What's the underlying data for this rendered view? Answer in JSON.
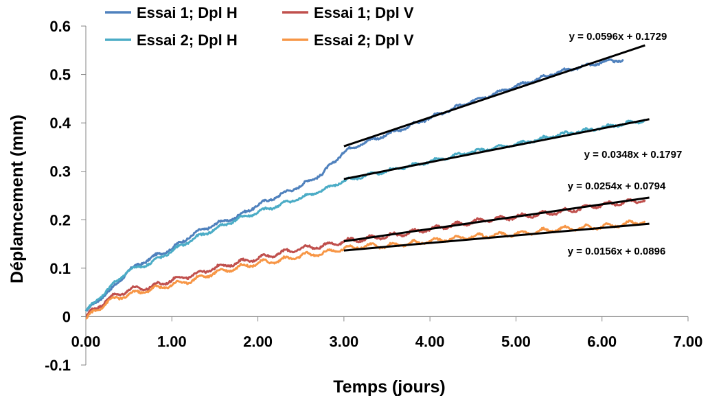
{
  "chart_data": {
    "type": "line",
    "title": "",
    "xlabel": "Temps (jours)",
    "ylabel": "Déplamcement (mm)",
    "xlim": [
      0,
      7
    ],
    "ylim": [
      -0.1,
      0.6
    ],
    "x_tick_labels": [
      "0.00",
      "1.00",
      "2.00",
      "3.00",
      "4.00",
      "5.00",
      "6.00",
      "7.00"
    ],
    "y_tick_labels": [
      "-0.1",
      "0",
      "0.1",
      "0.2",
      "0.3",
      "0.4",
      "0.5",
      "0.6"
    ],
    "grid": false,
    "legend_position": "top-left",
    "series": [
      {
        "name": "Essai 1; Dpl H",
        "color": "#4F81BD",
        "points": [
          [
            0.0,
            0.01
          ],
          [
            0.25,
            0.05
          ],
          [
            0.3,
            0.055
          ],
          [
            0.5,
            0.095
          ],
          [
            0.75,
            0.12
          ],
          [
            1.0,
            0.14
          ],
          [
            1.25,
            0.17
          ],
          [
            1.5,
            0.19
          ],
          [
            1.75,
            0.205
          ],
          [
            2.0,
            0.23
          ],
          [
            2.25,
            0.25
          ],
          [
            2.5,
            0.27
          ],
          [
            2.75,
            0.295
          ],
          [
            3.0,
            0.34
          ],
          [
            3.25,
            0.36
          ],
          [
            3.5,
            0.375
          ],
          [
            4.0,
            0.41
          ],
          [
            4.5,
            0.445
          ],
          [
            5.0,
            0.475
          ],
          [
            5.5,
            0.505
          ],
          [
            6.0,
            0.525
          ],
          [
            6.25,
            0.53
          ]
        ]
      },
      {
        "name": "Essai 1; Dpl V",
        "color": "#C0504D",
        "points": [
          [
            0.0,
            0.0
          ],
          [
            0.25,
            0.035
          ],
          [
            0.5,
            0.055
          ],
          [
            0.75,
            0.06
          ],
          [
            1.0,
            0.075
          ],
          [
            1.25,
            0.085
          ],
          [
            1.5,
            0.1
          ],
          [
            1.75,
            0.11
          ],
          [
            2.0,
            0.12
          ],
          [
            2.25,
            0.13
          ],
          [
            2.5,
            0.14
          ],
          [
            2.75,
            0.145
          ],
          [
            3.0,
            0.155
          ],
          [
            3.25,
            0.16
          ],
          [
            3.5,
            0.165
          ],
          [
            4.0,
            0.18
          ],
          [
            4.5,
            0.195
          ],
          [
            5.0,
            0.205
          ],
          [
            5.5,
            0.215
          ],
          [
            6.0,
            0.23
          ],
          [
            6.5,
            0.24
          ]
        ]
      },
      {
        "name": "Essai 2; Dpl H",
        "color": "#4BACC6",
        "points": [
          [
            0.0,
            0.01
          ],
          [
            0.25,
            0.055
          ],
          [
            0.5,
            0.095
          ],
          [
            0.75,
            0.11
          ],
          [
            1.0,
            0.135
          ],
          [
            1.25,
            0.16
          ],
          [
            1.5,
            0.18
          ],
          [
            1.75,
            0.2
          ],
          [
            2.0,
            0.215
          ],
          [
            2.25,
            0.23
          ],
          [
            2.5,
            0.245
          ],
          [
            2.75,
            0.26
          ],
          [
            3.0,
            0.28
          ],
          [
            3.25,
            0.29
          ],
          [
            3.5,
            0.3
          ],
          [
            4.0,
            0.32
          ],
          [
            4.5,
            0.34
          ],
          [
            5.0,
            0.355
          ],
          [
            5.5,
            0.375
          ],
          [
            6.0,
            0.39
          ],
          [
            6.5,
            0.405
          ]
        ]
      },
      {
        "name": "Essai 2; Dpl V",
        "color": "#F79646",
        "points": [
          [
            0.0,
            -0.005
          ],
          [
            0.25,
            0.03
          ],
          [
            0.5,
            0.045
          ],
          [
            0.75,
            0.055
          ],
          [
            1.0,
            0.065
          ],
          [
            1.25,
            0.075
          ],
          [
            1.5,
            0.09
          ],
          [
            1.75,
            0.1
          ],
          [
            2.0,
            0.11
          ],
          [
            2.25,
            0.115
          ],
          [
            2.5,
            0.125
          ],
          [
            2.75,
            0.13
          ],
          [
            3.0,
            0.14
          ],
          [
            3.25,
            0.145
          ],
          [
            3.5,
            0.145
          ],
          [
            4.0,
            0.155
          ],
          [
            4.5,
            0.165
          ],
          [
            5.0,
            0.17
          ],
          [
            5.5,
            0.18
          ],
          [
            6.0,
            0.185
          ],
          [
            6.5,
            0.195
          ]
        ]
      }
    ],
    "trendlines": [
      {
        "label": "y = 0.0596x + 0.1729",
        "slope": 0.0596,
        "intercept": 0.1729,
        "x_range": [
          3.0,
          6.5
        ],
        "color": "#000000"
      },
      {
        "label": "y = 0.0348x + 0.1797",
        "slope": 0.0348,
        "intercept": 0.1797,
        "x_range": [
          3.0,
          6.55
        ],
        "color": "#000000"
      },
      {
        "label": "y = 0.0254x + 0.0794",
        "slope": 0.0254,
        "intercept": 0.0794,
        "x_range": [
          3.0,
          6.55
        ],
        "color": "#000000"
      },
      {
        "label": "y = 0.0156x + 0.0896",
        "slope": 0.0156,
        "intercept": 0.0896,
        "x_range": [
          3.0,
          6.55
        ],
        "color": "#000000"
      }
    ]
  }
}
